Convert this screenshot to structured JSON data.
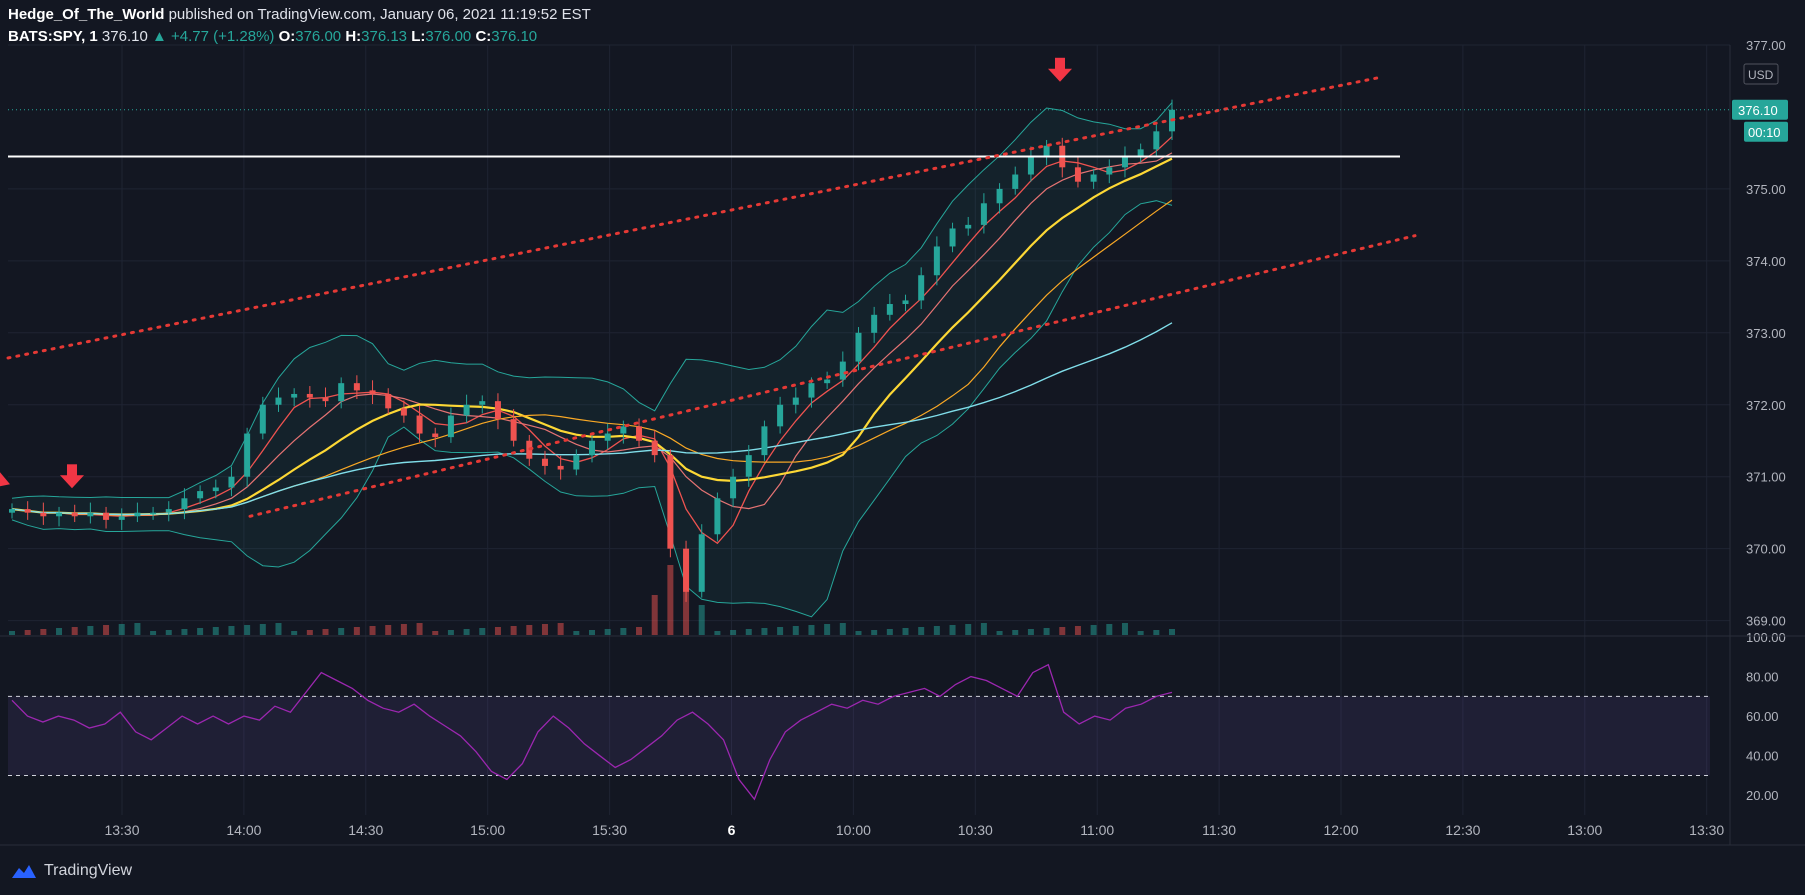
{
  "header": {
    "line1_author": "Hedge_Of_The_World",
    "line1_rest": "published on TradingView.com, January 06, 2021 11:19:52 EST",
    "symbol": "BATS:SPY, 1",
    "last": "376.10",
    "change": "▲ +4.77 (+1.28%)",
    "o_label": "O:",
    "o": "376.00",
    "h_label": "H:",
    "h": "376.13",
    "l_label": "L:",
    "l": "376.00",
    "c_label": "C:",
    "c": "376.10"
  },
  "footer": {
    "brand": "TradingView"
  },
  "colors": {
    "background": "#131722",
    "up": "#26a69a",
    "down": "#ef5350",
    "resistance_line": "#ffffff",
    "trend_dotted": "#e53935",
    "rsi_line": "#9c27b0",
    "rsi_band": "#7e57c2",
    "sma_yellow": "#fdd835",
    "ma_blue": "#80deea",
    "arrow": "#f23645",
    "price_tag": "#26a69a"
  },
  "chart_data": {
    "type": "line",
    "title": "BATS:SPY, 1",
    "currency": "USD",
    "price_axis": {
      "ylim": [
        368.8,
        377.0
      ],
      "ticks": [
        "377.00",
        "375.00",
        "374.00",
        "373.00",
        "372.00",
        "371.00",
        "370.00",
        "369.00"
      ],
      "current_price": "376.10",
      "countdown": "00:10"
    },
    "time_axis": [
      "13:30",
      "14:00",
      "14:30",
      "15:00",
      "15:30",
      "6",
      "10:00",
      "10:30",
      "11:00",
      "11:30",
      "12:00",
      "12:30",
      "13:00",
      "13:30"
    ],
    "price_series": {
      "name": "SPY 1m close",
      "values": [
        370.55,
        370.5,
        370.45,
        370.5,
        370.45,
        370.5,
        370.4,
        370.45,
        370.5,
        370.5,
        370.55,
        370.7,
        370.8,
        370.85,
        371.0,
        371.6,
        372.0,
        372.1,
        372.15,
        372.1,
        372.05,
        372.3,
        372.2,
        372.15,
        371.95,
        371.85,
        371.6,
        371.55,
        371.85,
        372.0,
        372.05,
        371.8,
        371.5,
        371.25,
        371.15,
        371.1,
        371.3,
        371.5,
        371.6,
        371.7,
        371.5,
        371.3,
        370.0,
        369.4,
        370.2,
        370.7,
        371.0,
        371.3,
        371.7,
        372.0,
        372.1,
        372.3,
        372.35,
        372.6,
        373.0,
        373.25,
        373.4,
        373.45,
        373.8,
        374.2,
        374.45,
        374.5,
        374.8,
        375.0,
        375.2,
        375.45,
        375.6,
        375.3,
        375.1,
        375.2,
        375.3,
        375.45,
        375.55,
        375.8,
        376.1
      ]
    },
    "volume_series": {
      "name": "Volume",
      "note": "bars along bottom of price pane; spikes near session open"
    },
    "rsi": {
      "ylim": [
        10,
        100
      ],
      "ticks": [
        "100.00",
        "80.00",
        "60.00",
        "40.00",
        "20.00"
      ],
      "upper_band": 70,
      "lower_band": 30,
      "values": [
        68,
        60,
        57,
        60,
        58,
        54,
        56,
        62,
        52,
        48,
        54,
        60,
        56,
        60,
        56,
        60,
        58,
        65,
        62,
        72,
        82,
        78,
        74,
        68,
        64,
        62,
        66,
        60,
        55,
        50,
        42,
        32,
        28,
        36,
        52,
        60,
        54,
        46,
        40,
        34,
        38,
        44,
        50,
        58,
        62,
        56,
        48,
        28,
        18,
        38,
        52,
        58,
        62,
        66,
        64,
        68,
        66,
        70,
        72,
        74,
        70,
        76,
        80,
        78,
        74,
        70,
        82,
        86,
        62,
        56,
        60,
        58,
        64,
        66,
        70,
        72
      ]
    },
    "annotations": {
      "horizontal_level": 375.45,
      "trend_upper": {
        "p1": [
          0,
          372.65
        ],
        "p2": [
          1,
          376.55
        ]
      },
      "trend_lower": {
        "p1": [
          0,
          370.45
        ],
        "p2": [
          1,
          374.35
        ]
      },
      "down_arrows": 3
    },
    "grid": true,
    "legend": "none"
  }
}
